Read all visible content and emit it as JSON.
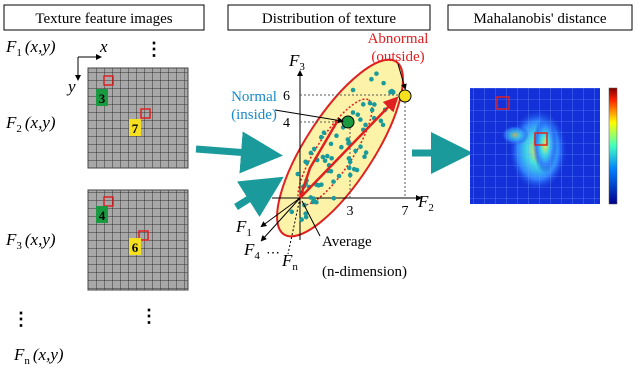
{
  "panels": {
    "texture": "Texture feature images",
    "distribution": "Distribution of texture",
    "mahalanobis": "Mahalanobis' distance"
  },
  "features": [
    {
      "name": "F",
      "sub": "1",
      "args": "(x,y)"
    },
    {
      "name": "F",
      "sub": "2",
      "args": "(x,y)"
    },
    {
      "name": "F",
      "sub": "3",
      "args": "(x,y)"
    },
    {
      "name": "F",
      "sub": "n",
      "args": "(x,y)"
    }
  ],
  "image_axes": {
    "x": "x",
    "y": "y"
  },
  "ellipsis": "⋮",
  "image_labels": [
    [
      "3",
      "7"
    ],
    [
      "4",
      "6"
    ]
  ],
  "distribution": {
    "normal": [
      "Normal",
      "(inside)"
    ],
    "abnormal": [
      "Abnormal",
      "(outside)"
    ],
    "axes": {
      "vertical": {
        "name": "F",
        "sub": "3"
      },
      "horizontal": {
        "name": "F",
        "sub": "2"
      },
      "others": [
        {
          "name": "F",
          "sub": "1"
        },
        {
          "name": "F",
          "sub": "4"
        },
        {
          "name": "F",
          "sub": "n"
        }
      ]
    },
    "ticks": {
      "y_high": "6",
      "y_low": "4",
      "x_low": "3",
      "x_high": "7"
    },
    "average": "Average",
    "dimension": "(n-dimension)"
  }
}
